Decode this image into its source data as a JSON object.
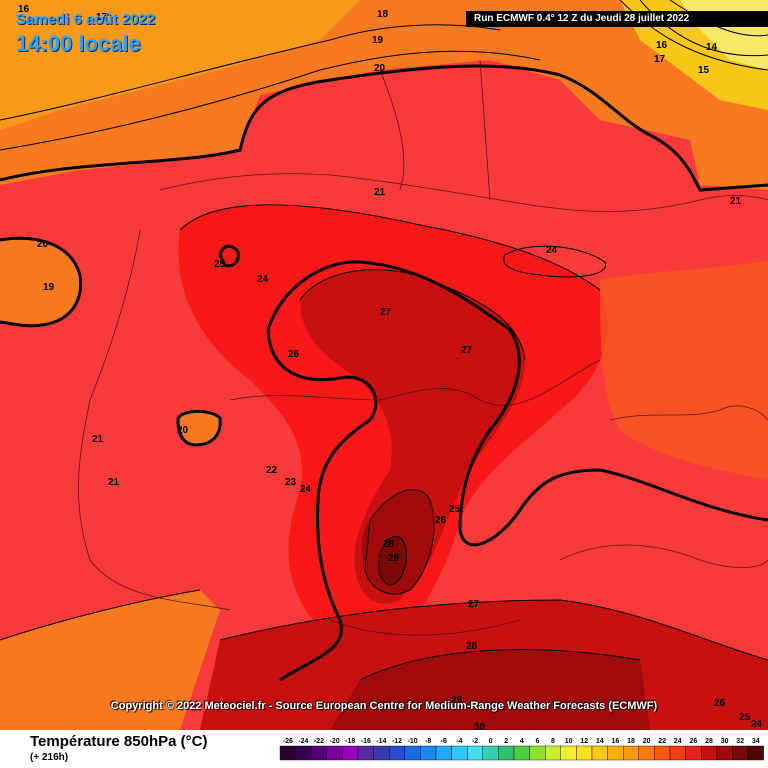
{
  "header": {
    "date": "Samedi 6 août 2022",
    "time": "14:00 locale",
    "run_info": "Run ECMWF 0.4° 12 Z du Jeudi 28 juillet 2022"
  },
  "copyright": "Copyright © 2022 Meteociel.fr - Source European Centre for Medium-Range Weather Forecasts (ECMWF)",
  "footer": {
    "title": "Température 850hPa (°C)",
    "subtitle": "(+ 216h)"
  },
  "legend": {
    "ticks": [
      "-26",
      "-24",
      "-22",
      "-20",
      "-18",
      "-16",
      "-14",
      "-12",
      "-10",
      "-8",
      "-6",
      "-4",
      "-2",
      "0",
      "2",
      "4",
      "6",
      "8",
      "10",
      "12",
      "14",
      "16",
      "18",
      "20",
      "22",
      "24",
      "26",
      "28",
      "30",
      "32",
      "34"
    ],
    "colors": [
      "#2a0030",
      "#3a0050",
      "#55007a",
      "#7a00a0",
      "#9a00c0",
      "#5a2aa0",
      "#3a3ab0",
      "#2a4ad0",
      "#1a6ae8",
      "#1a8af0",
      "#20aaf8",
      "#30c8f8",
      "#40e0f0",
      "#30d0b0",
      "#30c070",
      "#50d040",
      "#90e030",
      "#c8f030",
      "#f0f030",
      "#f8e020",
      "#f8c818",
      "#f8b010",
      "#f89810",
      "#f87810",
      "#f85a10",
      "#f83a18",
      "#e82020",
      "#c81010",
      "#a00a0a",
      "#7a0808",
      "#500505"
    ]
  },
  "labels": {
    "top_left_16": "16",
    "top_left_17": "17",
    "top_18": "18",
    "top_19": "19",
    "top_20": "20",
    "ne_16": "16",
    "ne_17": "17",
    "ne_14": "14",
    "ne_15": "15",
    "mid_21": "21",
    "east_21": "21",
    "west_20": "20",
    "west_19": "19",
    "l_25": "25",
    "l_24a": "24",
    "l_24b": "24",
    "l_27a": "27",
    "l_27b": "27",
    "l_26a": "26",
    "sw_21a": "21",
    "sw_21b": "21",
    "sw_20": "20",
    "c_22": "22",
    "c_23": "23",
    "c_24": "24",
    "c_25": "25",
    "c_26b": "26",
    "c_28": "28",
    "c_29": "29",
    "s_27": "27",
    "s_28": "28",
    "s_29": "29",
    "s_30": "30",
    "se_26": "26",
    "se_25": "25",
    "se_24": "24"
  },
  "colors": {
    "t15": "#f8c818",
    "t16": "#f8b010",
    "t18": "#f89810",
    "t20": "#f87810",
    "t22": "#f85a10",
    "t24": "#f83a18",
    "t26": "#e82020",
    "t28": "#c81010",
    "t30": "#a00a0a"
  }
}
